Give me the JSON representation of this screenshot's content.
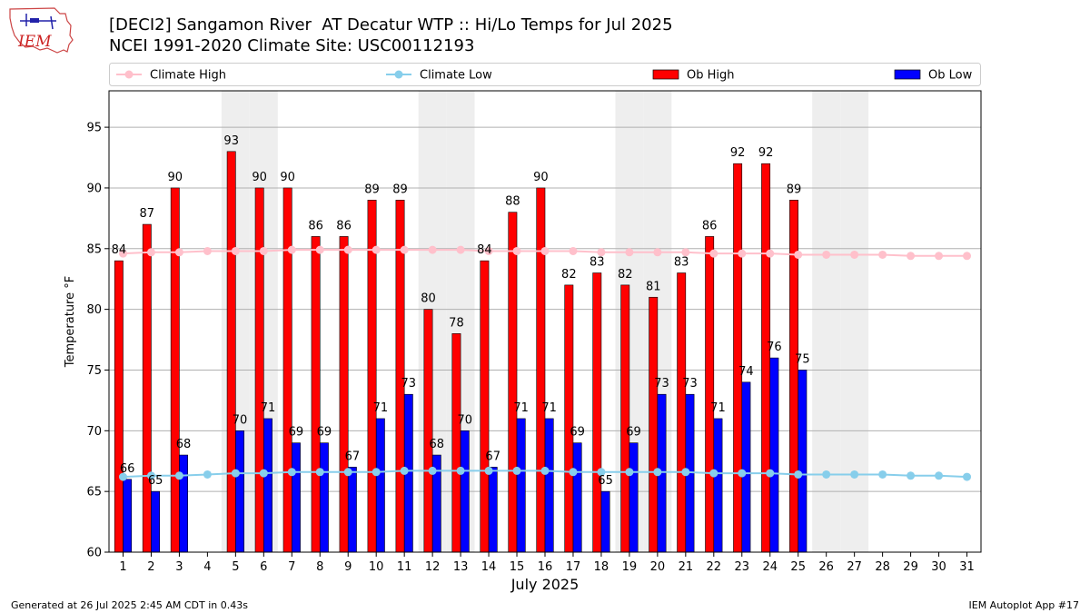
{
  "logo": {
    "text": "IEM"
  },
  "header": {
    "title_line1": "[DECI2] Sangamon River  AT Decatur WTP :: Hi/Lo Temps for Jul 2025",
    "title_line2": "NCEI 1991-2020 Climate Site: USC00112193"
  },
  "footer": {
    "generated": "Generated at 26 Jul 2025 2:45 AM CDT in 0.43s",
    "app": "IEM Autoplot App #17"
  },
  "colors": {
    "ob_high": "#ff0000",
    "ob_low": "#0000ff",
    "climate_high": "#ffc0cb",
    "climate_low": "#87ceeb",
    "weekend_band": "#eeeeee",
    "grid": "#b0b0b0"
  },
  "chart_data": {
    "type": "bar",
    "title": "[DECI2] Sangamon River  AT Decatur WTP :: Hi/Lo Temps for Jul 2025",
    "subtitle": "NCEI 1991-2020 Climate Site: USC00112193",
    "xlabel": "July 2025",
    "ylabel": "Temperature °F",
    "ylim": [
      60,
      98
    ],
    "yticks": [
      60,
      65,
      70,
      75,
      80,
      85,
      90,
      95
    ],
    "grid": true,
    "legend_position": "top",
    "days": [
      1,
      2,
      3,
      4,
      5,
      6,
      7,
      8,
      9,
      10,
      11,
      12,
      13,
      14,
      15,
      16,
      17,
      18,
      19,
      20,
      21,
      22,
      23,
      24,
      25,
      26,
      27,
      28,
      29,
      30,
      31
    ],
    "weekend_days": [
      5,
      6,
      12,
      13,
      19,
      20,
      26,
      27
    ],
    "legend": [
      "Climate High",
      "Climate Low",
      "Ob High",
      "Ob Low"
    ],
    "series": [
      {
        "name": "Ob High",
        "kind": "bar",
        "values": [
          84,
          87,
          90,
          null,
          93,
          90,
          90,
          86,
          86,
          89,
          89,
          80,
          78,
          84,
          88,
          90,
          82,
          83,
          82,
          81,
          83,
          86,
          92,
          92,
          89,
          null,
          null,
          null,
          null,
          null,
          null
        ]
      },
      {
        "name": "Ob Low",
        "kind": "bar",
        "values": [
          66,
          65,
          68,
          null,
          70,
          71,
          69,
          69,
          67,
          71,
          73,
          68,
          70,
          67,
          71,
          71,
          69,
          65,
          69,
          73,
          73,
          71,
          74,
          76,
          75,
          null,
          null,
          null,
          null,
          null,
          null
        ]
      },
      {
        "name": "Climate High",
        "kind": "line",
        "values": [
          84.6,
          84.7,
          84.7,
          84.8,
          84.8,
          84.8,
          84.9,
          84.9,
          84.9,
          84.9,
          84.9,
          84.9,
          84.9,
          84.8,
          84.8,
          84.8,
          84.8,
          84.7,
          84.7,
          84.7,
          84.7,
          84.6,
          84.6,
          84.6,
          84.5,
          84.5,
          84.5,
          84.5,
          84.4,
          84.4,
          84.4
        ]
      },
      {
        "name": "Climate Low",
        "kind": "line",
        "values": [
          66.2,
          66.3,
          66.3,
          66.4,
          66.5,
          66.5,
          66.6,
          66.6,
          66.6,
          66.6,
          66.7,
          66.7,
          66.7,
          66.7,
          66.7,
          66.7,
          66.6,
          66.6,
          66.6,
          66.6,
          66.6,
          66.5,
          66.5,
          66.5,
          66.4,
          66.4,
          66.4,
          66.4,
          66.3,
          66.3,
          66.2
        ]
      }
    ]
  }
}
